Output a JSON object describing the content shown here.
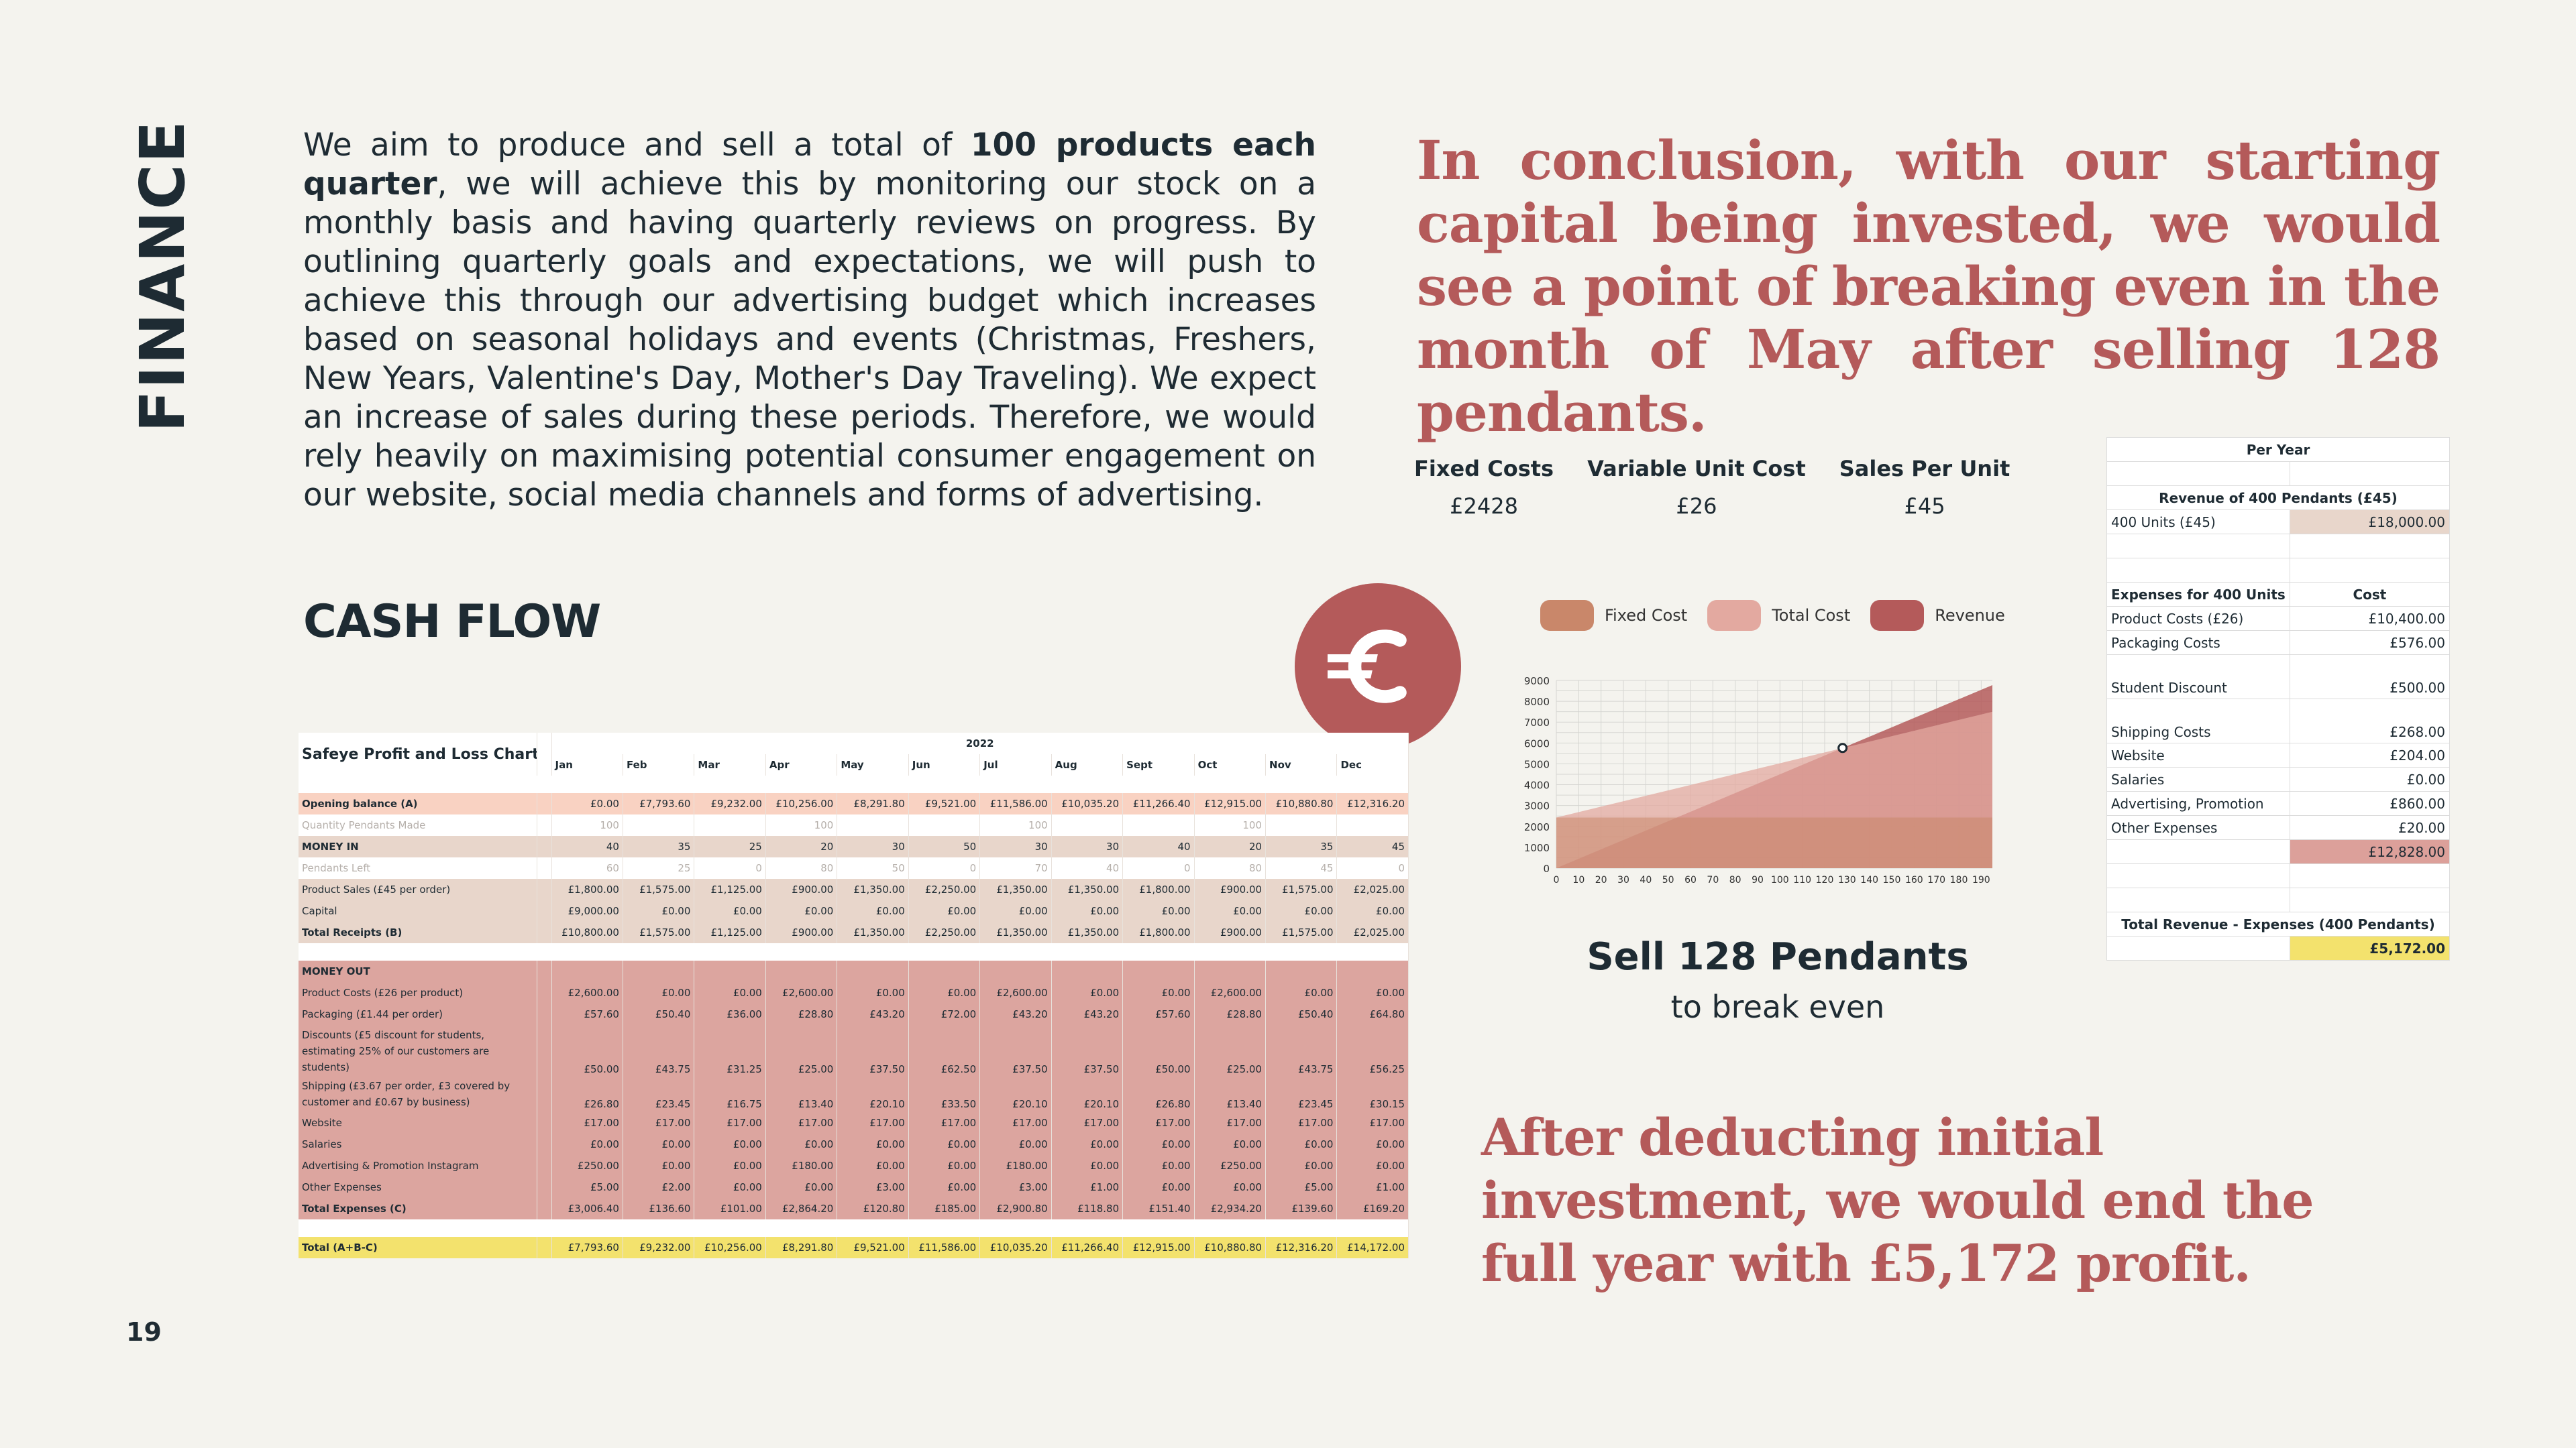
{
  "page": {
    "side_title": "FINANCE",
    "page_number": "19"
  },
  "intro": {
    "part1": "We aim to produce and sell a total of ",
    "bold1": "100 products each quarter",
    "part2": ", we will achieve this by monitoring our stock on a monthly basis and having quarterly reviews on progress. By outlining quarterly goals and expectations, we will push to achieve this through our advertising budget which increases based on seasonal holidays and events (Christmas, Freshers, New Years, Valentine's Day, Mother's Day Traveling). We expect an increase of sales during these periods. Therefore, we would rely heavily on maximising potential consumer engagement on our website, social media channels and forms of advertising."
  },
  "conclusion": "In conclusion, with our starting capital being invested, we would see a point of breaking even in the month of May after selling 128 pendants.",
  "after_text": "After deducting initial investment, we would end the full year with £5,172 profit.",
  "cash_flow_title": "CASH FLOW",
  "metrics": [
    {
      "label": "Fixed Costs",
      "value": "£2428"
    },
    {
      "label": "Variable Unit Cost",
      "value": "£26"
    },
    {
      "label": "Sales Per Unit",
      "value": "£45"
    }
  ],
  "breakeven": {
    "main": "Sell 128 Pendants",
    "sub": "to break even"
  },
  "colors": {
    "fixed": "#c9876a",
    "total": "#e3a9a0",
    "revenue": "#b45a5a",
    "accent": "#b45a5a"
  },
  "chart_data": {
    "type": "area",
    "legend": [
      "Fixed Cost",
      "Total Cost",
      "Revenue"
    ],
    "legend_position": "top",
    "x_ticks": [
      0,
      10,
      20,
      30,
      40,
      50,
      60,
      70,
      80,
      90,
      100,
      110,
      120,
      130,
      140,
      150,
      160,
      170,
      180,
      190
    ],
    "y_ticks": [
      0,
      1000,
      2000,
      3000,
      4000,
      5000,
      6000,
      7000,
      8000,
      9000
    ],
    "xlim": [
      0,
      195
    ],
    "ylim": [
      0,
      9000
    ],
    "grid": true,
    "series": [
      {
        "name": "Fixed Cost",
        "x": [
          0,
          195
        ],
        "y": [
          2428,
          2428
        ]
      },
      {
        "name": "Total Cost",
        "x": [
          0,
          195
        ],
        "y": [
          2428,
          7498
        ]
      },
      {
        "name": "Revenue",
        "x": [
          0,
          195
        ],
        "y": [
          0,
          8775
        ]
      }
    ],
    "break_even_point": {
      "x": 128,
      "y": 5760
    }
  },
  "per_year": {
    "header": "Per Year",
    "revenue_header": "Revenue of 400 Pendants (£45)",
    "revenue_row": {
      "label": "400 Units (£45)",
      "value": "£18,000.00"
    },
    "expenses_header": {
      "label": "Expenses for 400 Units",
      "value": "Cost"
    },
    "expenses": [
      {
        "label": "Product Costs (£26)",
        "value": "£10,400.00"
      },
      {
        "label": "Packaging Costs",
        "value": "£576.00"
      },
      {
        "label": "Student Discount",
        "value": "£500.00"
      },
      {
        "label": "Shipping Costs",
        "value": "£268.00"
      },
      {
        "label": "Website",
        "value": "£204.00"
      },
      {
        "label": "Salaries",
        "value": "£0.00"
      },
      {
        "label": "Advertising, Promotion",
        "value": "£860.00"
      },
      {
        "label": "Other Expenses",
        "value": "£20.00"
      }
    ],
    "expenses_total": "£12,828.00",
    "result_label": "Total Revenue - Expenses (400 Pendants)",
    "result_value": "£5,172.00"
  },
  "pl": {
    "title": "Safeye Profit and Loss Chart",
    "year": "2022",
    "months": [
      "Jan",
      "Feb",
      "Mar",
      "Apr",
      "May",
      "Jun",
      "Jul",
      "Aug",
      "Sept",
      "Oct",
      "Nov",
      "Dec"
    ],
    "opening": {
      "label": "Opening balance (A)",
      "values": [
        "£0.00",
        "£7,793.60",
        "£9,232.00",
        "£10,256.00",
        "£8,291.80",
        "£9,521.00",
        "£11,586.00",
        "£10,035.20",
        "£11,266.40",
        "£12,915.00",
        "£10,880.80",
        "£12,316.20"
      ]
    },
    "qty_made": {
      "label": "Quantity Pendants Made",
      "values": [
        "100",
        "",
        "",
        "100",
        "",
        "",
        "100",
        "",
        "",
        "100",
        "",
        ""
      ]
    },
    "money_in": {
      "label": "MONEY IN",
      "values": [
        "40",
        "35",
        "25",
        "20",
        "30",
        "50",
        "30",
        "30",
        "40",
        "20",
        "35",
        "45"
      ]
    },
    "pendants_left": {
      "label": "Pendants Left",
      "values": [
        "60",
        "25",
        "0",
        "80",
        "50",
        "0",
        "70",
        "40",
        "0",
        "80",
        "45",
        "0"
      ]
    },
    "product_sales": {
      "label": "Product Sales (£45 per order)",
      "values": [
        "£1,800.00",
        "£1,575.00",
        "£1,125.00",
        "£900.00",
        "£1,350.00",
        "£2,250.00",
        "£1,350.00",
        "£1,350.00",
        "£1,800.00",
        "£900.00",
        "£1,575.00",
        "£2,025.00"
      ]
    },
    "capital": {
      "label": "Capital",
      "values": [
        "£9,000.00",
        "£0.00",
        "£0.00",
        "£0.00",
        "£0.00",
        "£0.00",
        "£0.00",
        "£0.00",
        "£0.00",
        "£0.00",
        "£0.00",
        "£0.00"
      ]
    },
    "total_receipts": {
      "label": "Total Receipts (B)",
      "values": [
        "£10,800.00",
        "£1,575.00",
        "£1,125.00",
        "£900.00",
        "£1,350.00",
        "£2,250.00",
        "£1,350.00",
        "£1,350.00",
        "£1,800.00",
        "£900.00",
        "£1,575.00",
        "£2,025.00"
      ]
    },
    "money_out_label": "MONEY OUT",
    "product_costs": {
      "label": "Product Costs (£26 per product)",
      "values": [
        "£2,600.00",
        "£0.00",
        "£0.00",
        "£2,600.00",
        "£0.00",
        "£0.00",
        "£2,600.00",
        "£0.00",
        "£0.00",
        "£2,600.00",
        "£0.00",
        "£0.00"
      ]
    },
    "packaging": {
      "label": "Packaging (£1.44 per order)",
      "values": [
        "£57.60",
        "£50.40",
        "£36.00",
        "£28.80",
        "£43.20",
        "£72.00",
        "£43.20",
        "£43.20",
        "£57.60",
        "£28.80",
        "£50.40",
        "£64.80"
      ]
    },
    "discounts": {
      "label": "Discounts (£5 discount for students, estimating 25% of our customers are students)",
      "values": [
        "£50.00",
        "£43.75",
        "£31.25",
        "£25.00",
        "£37.50",
        "£62.50",
        "£37.50",
        "£37.50",
        "£50.00",
        "£25.00",
        "£43.75",
        "£56.25"
      ]
    },
    "shipping": {
      "label": "Shipping (£3.67 per order, £3 covered by customer and £0.67 by business)",
      "values": [
        "£26.80",
        "£23.45",
        "£16.75",
        "£13.40",
        "£20.10",
        "£33.50",
        "£20.10",
        "£20.10",
        "£26.80",
        "£13.40",
        "£23.45",
        "£30.15"
      ]
    },
    "website": {
      "label": "Website",
      "values": [
        "£17.00",
        "£17.00",
        "£17.00",
        "£17.00",
        "£17.00",
        "£17.00",
        "£17.00",
        "£17.00",
        "£17.00",
        "£17.00",
        "£17.00",
        "£17.00"
      ]
    },
    "salaries": {
      "label": "Salaries",
      "values": [
        "£0.00",
        "£0.00",
        "£0.00",
        "£0.00",
        "£0.00",
        "£0.00",
        "£0.00",
        "£0.00",
        "£0.00",
        "£0.00",
        "£0.00",
        "£0.00"
      ]
    },
    "advertising": {
      "label": "Advertising & Promotion Instagram",
      "values": [
        "£250.00",
        "£0.00",
        "£0.00",
        "£180.00",
        "£0.00",
        "£0.00",
        "£180.00",
        "£0.00",
        "£0.00",
        "£250.00",
        "£0.00",
        "£0.00"
      ]
    },
    "other": {
      "label": "Other Expenses",
      "values": [
        "£5.00",
        "£2.00",
        "£0.00",
        "£0.00",
        "£3.00",
        "£0.00",
        "£3.00",
        "£1.00",
        "£0.00",
        "£0.00",
        "£5.00",
        "£1.00"
      ]
    },
    "total_expenses": {
      "label": "Total Expenses (C)",
      "values": [
        "£3,006.40",
        "£136.60",
        "£101.00",
        "£2,864.20",
        "£120.80",
        "£185.00",
        "£2,900.80",
        "£118.80",
        "£151.40",
        "£2,934.20",
        "£139.60",
        "£169.20"
      ]
    },
    "total": {
      "label": "Total (A+B-C)",
      "values": [
        "£7,793.60",
        "£9,232.00",
        "£10,256.00",
        "£8,291.80",
        "£9,521.00",
        "£11,586.00",
        "£10,035.20",
        "£11,266.40",
        "£12,915.00",
        "£10,880.80",
        "£12,316.20",
        "£14,172.00"
      ]
    }
  }
}
